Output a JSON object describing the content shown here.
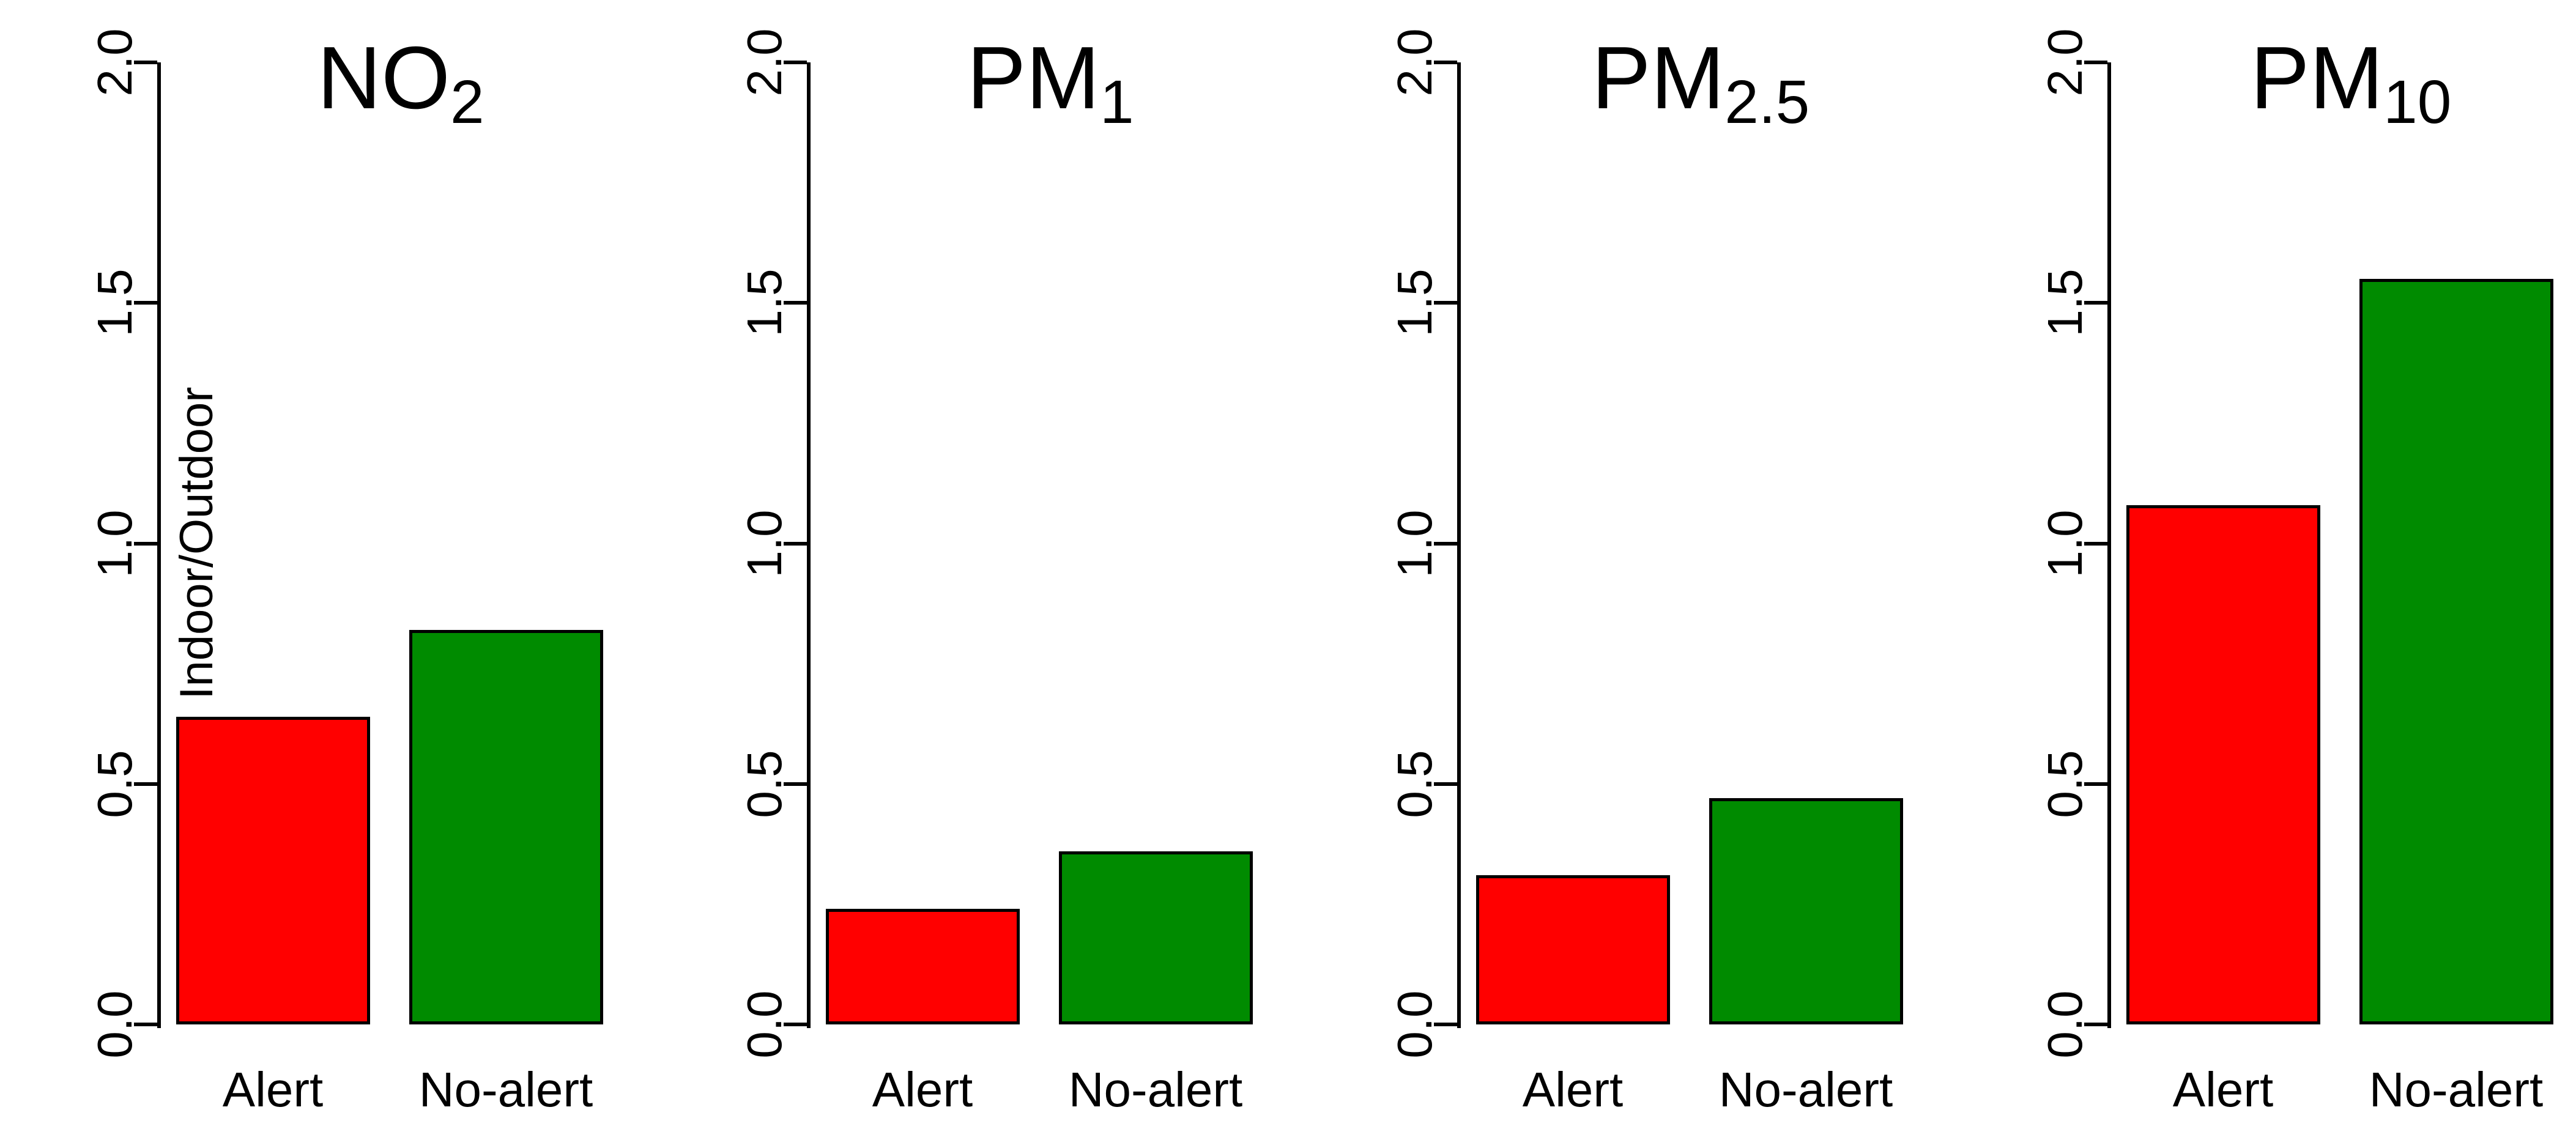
{
  "chart_data": {
    "type": "bar",
    "ylabel": "Indoor/Outdoor",
    "ylim": [
      0,
      2
    ],
    "yticks": [
      "0.0",
      "0.5",
      "1.0",
      "1.5",
      "2.0"
    ],
    "ytick_values": [
      0,
      0.5,
      1,
      1.5,
      2
    ],
    "categories": [
      "Alert",
      "No-alert"
    ],
    "bar_colors": {
      "alert": "#FF0000",
      "no_alert": "#008B00"
    },
    "axis_color": "#000000",
    "background_color": "#FFFFFF",
    "grid": "off",
    "legend": "none",
    "panels": [
      {
        "pollutant": "NO2",
        "title_main": "NO",
        "title_sub": "2",
        "values": [
          0.64,
          0.82
        ]
      },
      {
        "pollutant": "PM1",
        "title_main": "PM",
        "title_sub": "1",
        "values": [
          0.24,
          0.36
        ]
      },
      {
        "pollutant": "PM2.5",
        "title_main": "PM",
        "title_sub": "2.5",
        "values": [
          0.31,
          0.47
        ]
      },
      {
        "pollutant": "PM10",
        "title_main": "PM",
        "title_sub": "10",
        "values": [
          1.08,
          1.55
        ]
      }
    ]
  }
}
